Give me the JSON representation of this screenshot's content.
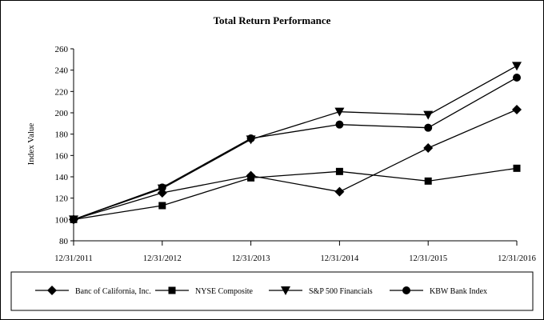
{
  "chart_data": {
    "type": "line",
    "title": "Total Return Performance",
    "xlabel": "",
    "ylabel": "Index Value",
    "categories": [
      "12/31/2011",
      "12/31/2012",
      "12/31/2013",
      "12/31/2014",
      "12/31/2015",
      "12/31/2016"
    ],
    "ylim": [
      80,
      260
    ],
    "yticks": [
      80,
      100,
      120,
      140,
      160,
      180,
      200,
      220,
      240,
      260
    ],
    "grid": false,
    "legend": "bottom",
    "series": [
      {
        "name": "Banc of California, Inc.",
        "marker": "diamond",
        "values": [
          100,
          125,
          141,
          126,
          167,
          203
        ]
      },
      {
        "name": "NYSE Composite",
        "marker": "square",
        "values": [
          100,
          113,
          139,
          145,
          136,
          148
        ]
      },
      {
        "name": "S&P 500 Financials",
        "marker": "triangle-down",
        "values": [
          100,
          129,
          175,
          201,
          198,
          244
        ]
      },
      {
        "name": "KBW Bank Index",
        "marker": "circle",
        "values": [
          100,
          130,
          176,
          189,
          186,
          233
        ]
      }
    ],
    "colors": {
      "line": "#000000",
      "marker": "#000000"
    }
  }
}
